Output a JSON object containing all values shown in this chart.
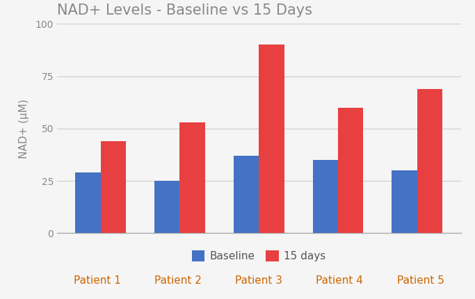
{
  "title": "NAD+ Levels - Baseline vs 15 Days",
  "ylabel": "NAD+ (μM)",
  "categories": [
    "Patient 1",
    "Patient 2",
    "Patient 3",
    "Patient 4",
    "Patient 5"
  ],
  "baseline": [
    29,
    25,
    37,
    35,
    30
  ],
  "days15": [
    44,
    53,
    90,
    60,
    69
  ],
  "baseline_color": "#4472C4",
  "days15_color": "#E84040",
  "ylim": [
    0,
    100
  ],
  "yticks": [
    0,
    25,
    50,
    75,
    100
  ],
  "legend_labels": [
    "Baseline",
    "15 days"
  ],
  "title_color": "#888888",
  "xlabel_color": "#CC6600",
  "ytick_color": "#888888",
  "background_color": "#f5f5f5",
  "grid_color": "#cccccc",
  "bar_width": 0.32
}
